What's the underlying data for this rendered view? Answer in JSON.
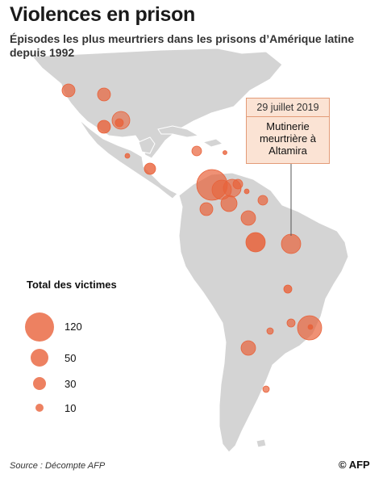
{
  "header": {
    "title": "Violences en prison",
    "subtitle": "Épisodes les plus meurtriers dans les prisons d’Amérique latine depuis 1992"
  },
  "callout": {
    "date": "29 juillet 2019",
    "text": "Mutinerie meurtrière à Altamira"
  },
  "legend": {
    "title": "Total des victimes",
    "entries": [
      "120",
      "50",
      "30",
      "10"
    ]
  },
  "footer": {
    "source": "Source : Décompte AFP",
    "logo": "© AFP"
  },
  "colors": {
    "ocean": "#ffffff",
    "land": "#d4d4d4",
    "border": "#ffffff",
    "bubble": "#e8623a",
    "callout_fill": "#fbe3d4",
    "callout_border": "#e39b78"
  },
  "icons": {
    "logo": "afp-logo"
  }
}
